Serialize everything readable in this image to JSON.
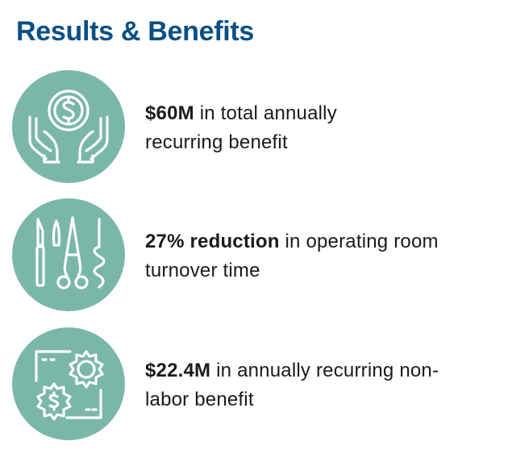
{
  "page": {
    "title": "Results & Benefits",
    "title_color": "#0a4f86",
    "icon_bg_color": "#7ab7a9"
  },
  "items": [
    {
      "icon": "hands-dollar-coin-icon",
      "highlight": "$60M",
      "line1_rest": " in total annually",
      "line2": "recurring benefit"
    },
    {
      "icon": "surgical-instruments-icon",
      "highlight": "27% reduction",
      "line1_rest": " in operating room",
      "line2": "turnover time"
    },
    {
      "icon": "gears-dollar-window-icon",
      "highlight": "$22.4M",
      "line1_rest": " in annually recurring non-",
      "line2": "labor benefit"
    }
  ]
}
